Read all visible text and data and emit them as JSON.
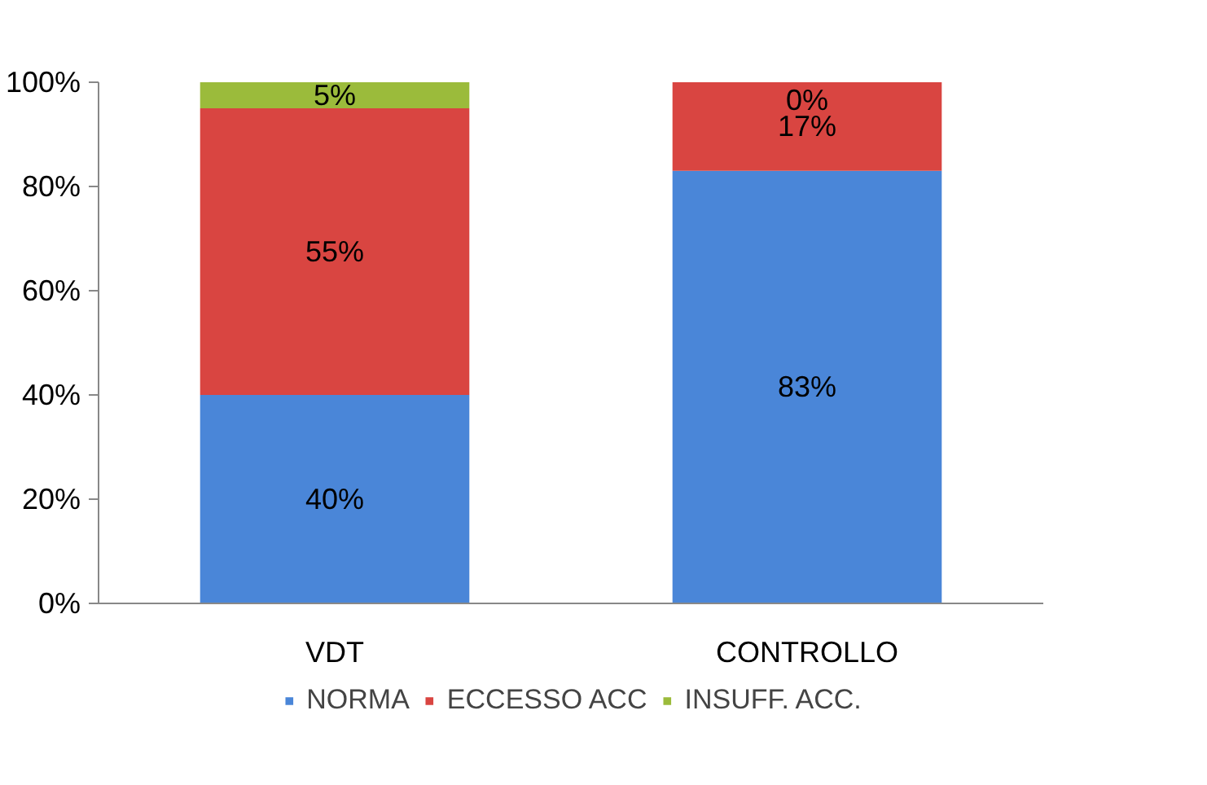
{
  "chart_data": {
    "type": "bar",
    "stacked": true,
    "categories": [
      "VDT",
      "CONTROLLO"
    ],
    "series": [
      {
        "name": "NORMA",
        "color": "#4a86d8",
        "values": [
          40,
          83
        ],
        "value_labels": [
          "40%",
          "83%"
        ]
      },
      {
        "name": "ECCESSO ACC",
        "color": "#d94541",
        "values": [
          55,
          17
        ],
        "value_labels": [
          "55%",
          "17%"
        ]
      },
      {
        "name": "INSUFF. ACC.",
        "color": "#9bbb3b",
        "values": [
          5,
          0
        ],
        "value_labels": [
          "5%",
          "0%"
        ]
      }
    ],
    "ylim": [
      0,
      100
    ],
    "yticks": [
      {
        "value": 0,
        "label": "0%"
      },
      {
        "value": 20,
        "label": "20%"
      },
      {
        "value": 40,
        "label": "40%"
      },
      {
        "value": 60,
        "label": "60%"
      },
      {
        "value": 80,
        "label": "80%"
      },
      {
        "value": 100,
        "label": "100%"
      }
    ],
    "grid": false,
    "legend": "bottom"
  }
}
